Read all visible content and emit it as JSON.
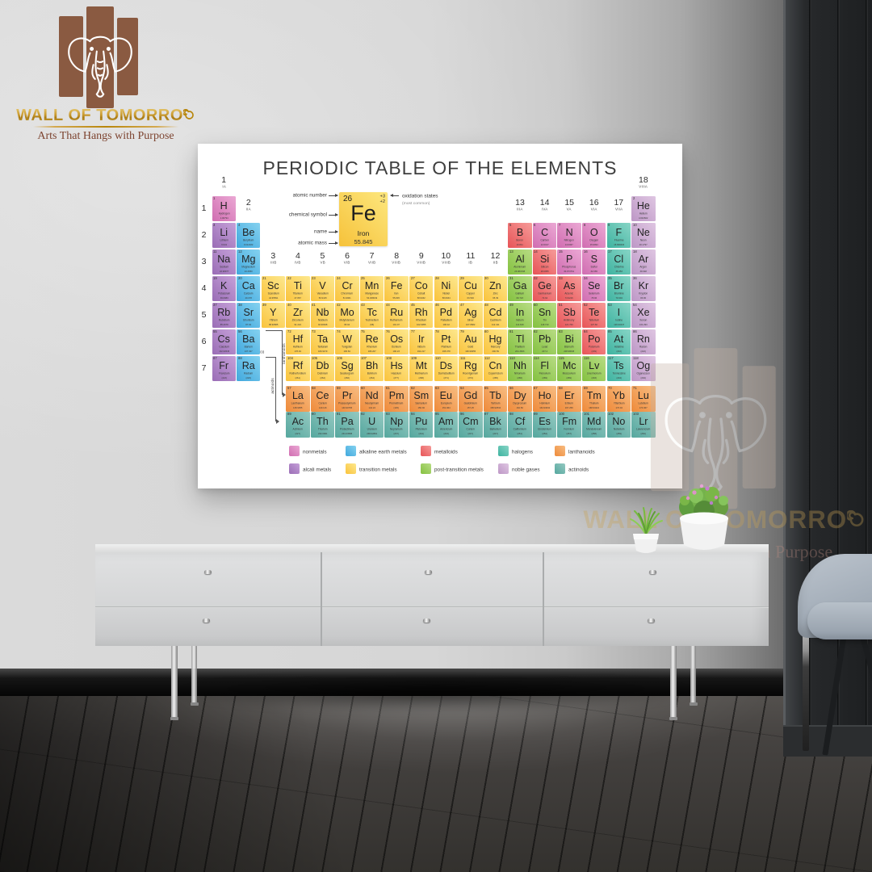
{
  "brand": {
    "name": "WALL OF TOMORRO",
    "tagline": "Arts That Hangs with Purpose",
    "mark_icon": "spiral-swirl-icon",
    "logo_icon": "elephant-icon",
    "gold": "#c9992e",
    "brown": "#8a5a41"
  },
  "poster": {
    "title": "PERIODIC TABLE OF THE ELEMENTS",
    "key": {
      "atomic_number": "26",
      "symbol": "Fe",
      "name": "Iron",
      "mass": "55.845",
      "oxidation_states": [
        "+3",
        "+2"
      ],
      "labels": {
        "atomic_number": "atomic number",
        "symbol": "chemical symbol",
        "name": "name",
        "mass": "atomic mass",
        "oxidation": "oxidation states",
        "oxidation_note": "(most common)"
      }
    },
    "periods": [
      "1",
      "2",
      "3",
      "4",
      "5",
      "6",
      "7"
    ],
    "groups": [
      {
        "num": "1",
        "roman": "IA",
        "col": 1,
        "level": 0
      },
      {
        "num": "2",
        "roman": "IIA",
        "col": 2,
        "level": 1
      },
      {
        "num": "3",
        "roman": "IIIB",
        "col": 3,
        "level": 3
      },
      {
        "num": "4",
        "roman": "IVB",
        "col": 4,
        "level": 3
      },
      {
        "num": "5",
        "roman": "VB",
        "col": 5,
        "level": 3
      },
      {
        "num": "6",
        "roman": "VIB",
        "col": 6,
        "level": 3
      },
      {
        "num": "7",
        "roman": "VIIB",
        "col": 7,
        "level": 3
      },
      {
        "num": "8",
        "roman": "VIIIB",
        "col": 8,
        "level": 3
      },
      {
        "num": "9",
        "roman": "VIIIB",
        "col": 9,
        "level": 3
      },
      {
        "num": "10",
        "roman": "VIIIB",
        "col": 10,
        "level": 3
      },
      {
        "num": "11",
        "roman": "IB",
        "col": 11,
        "level": 3
      },
      {
        "num": "12",
        "roman": "IIB",
        "col": 12,
        "level": 3
      },
      {
        "num": "13",
        "roman": "IIIA",
        "col": 13,
        "level": 1
      },
      {
        "num": "14",
        "roman": "IVA",
        "col": 14,
        "level": 1
      },
      {
        "num": "15",
        "roman": "VA",
        "col": 15,
        "level": 1
      },
      {
        "num": "16",
        "roman": "VIA",
        "col": 16,
        "level": 1
      },
      {
        "num": "17",
        "roman": "VIIA",
        "col": 17,
        "level": 1
      },
      {
        "num": "18",
        "roman": "VIIIA",
        "col": 18,
        "level": 0
      }
    ],
    "series_links": [
      {
        "range": "57 - 71",
        "label": "lanthanoids"
      },
      {
        "range": "89 - 103",
        "label": "actinoids"
      }
    ],
    "categories": {
      "nm": {
        "label": "nonmetals",
        "color": "#d06db1",
        "color_light": "#eba8d4"
      },
      "am": {
        "label": "alcali metals",
        "color": "#9a6db6",
        "color_light": "#c5a0d8"
      },
      "ae": {
        "label": "alkaline earth metals",
        "color": "#41a8dd",
        "color_light": "#85d2f0"
      },
      "tm": {
        "label": "transition metals",
        "color": "#fac33c",
        "color_light": "#fde88e"
      },
      "pt": {
        "label": "post-transition metals",
        "color": "#84c140",
        "color_light": "#b8dc84"
      },
      "md": {
        "label": "metalloids",
        "color": "#e75457",
        "color_light": "#f69b99"
      },
      "hl": {
        "label": "halogens",
        "color": "#3eb3a0",
        "color_light": "#88d5c6"
      },
      "ng": {
        "label": "noble gases",
        "color": "#bd97c6",
        "color_light": "#dfc6e2"
      },
      "la": {
        "label": "lanthanoids",
        "color": "#ee8a3a",
        "color_light": "#f8bd82"
      },
      "ac": {
        "label": "actinoids",
        "color": "#55a79e",
        "color_light": "#94c9c1"
      }
    },
    "legend_rows": [
      [
        "nm",
        "ae",
        "md",
        "hl",
        "la"
      ],
      [
        "am",
        "tm",
        "pt",
        "ng",
        "ac"
      ]
    ],
    "elements": [
      [
        1,
        "H",
        "Hydrogen",
        "1.00794",
        "nm",
        1,
        1
      ],
      [
        2,
        "He",
        "Helium",
        "4.002602",
        "ng",
        1,
        18
      ],
      [
        3,
        "Li",
        "Lithium",
        "6.941",
        "am",
        2,
        1
      ],
      [
        4,
        "Be",
        "Beryllium",
        "9.012182",
        "ae",
        2,
        2
      ],
      [
        5,
        "B",
        "Boron",
        "10.811",
        "md",
        2,
        13
      ],
      [
        6,
        "C",
        "Carbon",
        "12.0107",
        "nm",
        2,
        14
      ],
      [
        7,
        "N",
        "Nitrogen",
        "14.0067",
        "nm",
        2,
        15
      ],
      [
        8,
        "O",
        "Oxygen",
        "15.9994",
        "nm",
        2,
        16
      ],
      [
        9,
        "F",
        "Fluorine",
        "18.998403",
        "hl",
        2,
        17
      ],
      [
        10,
        "Ne",
        "Neon",
        "20.1797",
        "ng",
        2,
        18
      ],
      [
        11,
        "Na",
        "Sodium",
        "22.98977",
        "am",
        3,
        1
      ],
      [
        12,
        "Mg",
        "Magnesium",
        "24.3050",
        "ae",
        3,
        2
      ],
      [
        13,
        "Al",
        "Aluminium",
        "26.981538",
        "pt",
        3,
        13
      ],
      [
        14,
        "Si",
        "Silicon",
        "28.0855",
        "md",
        3,
        14
      ],
      [
        15,
        "P",
        "Phosphorus",
        "30.973761",
        "nm",
        3,
        15
      ],
      [
        16,
        "S",
        "Sulfur",
        "32.065",
        "nm",
        3,
        16
      ],
      [
        17,
        "Cl",
        "Chlorine",
        "35.453",
        "hl",
        3,
        17
      ],
      [
        18,
        "Ar",
        "Argon",
        "39.948",
        "ng",
        3,
        18
      ],
      [
        19,
        "K",
        "Potassium",
        "39.0983",
        "am",
        4,
        1
      ],
      [
        20,
        "Ca",
        "Calcium",
        "40.078",
        "ae",
        4,
        2
      ],
      [
        21,
        "Sc",
        "Scandium",
        "44.95591",
        "tm",
        4,
        3
      ],
      [
        22,
        "Ti",
        "Titanium",
        "47.867",
        "tm",
        4,
        4
      ],
      [
        23,
        "V",
        "Vanadium",
        "50.9415",
        "tm",
        4,
        5
      ],
      [
        24,
        "Cr",
        "Chromium",
        "51.9961",
        "tm",
        4,
        6
      ],
      [
        25,
        "Mn",
        "Manganese",
        "54.938049",
        "tm",
        4,
        7
      ],
      [
        26,
        "Fe",
        "Iron",
        "55.845",
        "tm",
        4,
        8
      ],
      [
        27,
        "Co",
        "Cobalt",
        "58.9332",
        "tm",
        4,
        9
      ],
      [
        28,
        "Ni",
        "Nickel",
        "58.6934",
        "tm",
        4,
        10
      ],
      [
        29,
        "Cu",
        "Copper",
        "63.546",
        "tm",
        4,
        11
      ],
      [
        30,
        "Zn",
        "Zinc",
        "65.39",
        "tm",
        4,
        12
      ],
      [
        31,
        "Ga",
        "Gallium",
        "69.723",
        "pt",
        4,
        13
      ],
      [
        32,
        "Ge",
        "Germanium",
        "72.64",
        "md",
        4,
        14
      ],
      [
        33,
        "As",
        "Arsenic",
        "74.9216",
        "md",
        4,
        15
      ],
      [
        34,
        "Se",
        "Selenium",
        "78.96",
        "nm",
        4,
        16
      ],
      [
        35,
        "Br",
        "Bromine",
        "79.904",
        "hl",
        4,
        17
      ],
      [
        36,
        "Kr",
        "Krypton",
        "83.80",
        "ng",
        4,
        18
      ],
      [
        37,
        "Rb",
        "Rubidium",
        "85.4678",
        "am",
        5,
        1
      ],
      [
        38,
        "Sr",
        "Strontium",
        "87.62",
        "ae",
        5,
        2
      ],
      [
        39,
        "Y",
        "Yttrium",
        "88.90585",
        "tm",
        5,
        3
      ],
      [
        40,
        "Zr",
        "Zirconium",
        "91.224",
        "tm",
        5,
        4
      ],
      [
        41,
        "Nb",
        "Niobium",
        "92.90638",
        "tm",
        5,
        5
      ],
      [
        42,
        "Mo",
        "Molybdenum",
        "95.94",
        "tm",
        5,
        6
      ],
      [
        43,
        "Tc",
        "Technetium",
        "(98)",
        "tm",
        5,
        7
      ],
      [
        44,
        "Ru",
        "Ruthenium",
        "101.07",
        "tm",
        5,
        8
      ],
      [
        45,
        "Rh",
        "Rhodium",
        "102.9055",
        "tm",
        5,
        9
      ],
      [
        46,
        "Pd",
        "Palladium",
        "106.42",
        "tm",
        5,
        10
      ],
      [
        47,
        "Ag",
        "Silver",
        "107.8682",
        "tm",
        5,
        11
      ],
      [
        48,
        "Cd",
        "Cadmium",
        "112.411",
        "tm",
        5,
        12
      ],
      [
        49,
        "In",
        "Indium",
        "114.818",
        "pt",
        5,
        13
      ],
      [
        50,
        "Sn",
        "Tin",
        "118.710",
        "pt",
        5,
        14
      ],
      [
        51,
        "Sb",
        "Antimony",
        "121.760",
        "md",
        5,
        15
      ],
      [
        52,
        "Te",
        "Tellurium",
        "127.60",
        "md",
        5,
        16
      ],
      [
        53,
        "I",
        "Iodine",
        "126.90447",
        "hl",
        5,
        17
      ],
      [
        54,
        "Xe",
        "Xenon",
        "131.293",
        "ng",
        5,
        18
      ],
      [
        55,
        "Cs",
        "Caesium",
        "132.90545",
        "am",
        6,
        1
      ],
      [
        56,
        "Ba",
        "Barium",
        "137.327",
        "ae",
        6,
        2
      ],
      [
        72,
        "Hf",
        "Hafnium",
        "178.49",
        "tm",
        6,
        4
      ],
      [
        73,
        "Ta",
        "Tantalum",
        "180.9479",
        "tm",
        6,
        5
      ],
      [
        74,
        "W",
        "Tungsten",
        "183.84",
        "tm",
        6,
        6
      ],
      [
        75,
        "Re",
        "Rhenium",
        "186.207",
        "tm",
        6,
        7
      ],
      [
        76,
        "Os",
        "Osmium",
        "190.23",
        "tm",
        6,
        8
      ],
      [
        77,
        "Ir",
        "Iridium",
        "192.217",
        "tm",
        6,
        9
      ],
      [
        78,
        "Pt",
        "Platinum",
        "195.078",
        "tm",
        6,
        10
      ],
      [
        79,
        "Au",
        "Gold",
        "196.96655",
        "tm",
        6,
        11
      ],
      [
        80,
        "Hg",
        "Mercury",
        "200.59",
        "tm",
        6,
        12
      ],
      [
        81,
        "Tl",
        "Thallium",
        "204.3833",
        "pt",
        6,
        13
      ],
      [
        82,
        "Pb",
        "Lead",
        "207.2",
        "pt",
        6,
        14
      ],
      [
        83,
        "Bi",
        "Bismuth",
        "208.98038",
        "pt",
        6,
        15
      ],
      [
        84,
        "Po",
        "Polonium",
        "(209)",
        "md",
        6,
        16
      ],
      [
        85,
        "At",
        "Astatine",
        "(210)",
        "hl",
        6,
        17
      ],
      [
        86,
        "Rn",
        "Radon",
        "(222)",
        "ng",
        6,
        18
      ],
      [
        87,
        "Fr",
        "Francium",
        "(223)",
        "am",
        7,
        1
      ],
      [
        88,
        "Ra",
        "Radium",
        "(226)",
        "ae",
        7,
        2
      ],
      [
        104,
        "Rf",
        "Rutherfordium",
        "(261)",
        "tm",
        7,
        4
      ],
      [
        105,
        "Db",
        "Dubnium",
        "(262)",
        "tm",
        7,
        5
      ],
      [
        106,
        "Sg",
        "Seaborgium",
        "(266)",
        "tm",
        7,
        6
      ],
      [
        107,
        "Bh",
        "Bohrium",
        "(264)",
        "tm",
        7,
        7
      ],
      [
        108,
        "Hs",
        "Hassium",
        "(277)",
        "tm",
        7,
        8
      ],
      [
        109,
        "Mt",
        "Meitnerium",
        "(268)",
        "tm",
        7,
        9
      ],
      [
        110,
        "Ds",
        "Darmstadtium",
        "(271)",
        "tm",
        7,
        10
      ],
      [
        111,
        "Rg",
        "Roentgenium",
        "(272)",
        "tm",
        7,
        11
      ],
      [
        112,
        "Cn",
        "Copernicium",
        "(285)",
        "tm",
        7,
        12
      ],
      [
        113,
        "Nh",
        "Nihonium",
        "(286)",
        "pt",
        7,
        13
      ],
      [
        114,
        "Fl",
        "Flerovium",
        "(289)",
        "pt",
        7,
        14
      ],
      [
        115,
        "Mc",
        "Moscovium",
        "(289)",
        "pt",
        7,
        15
      ],
      [
        116,
        "Lv",
        "Livermorium",
        "(293)",
        "pt",
        7,
        16
      ],
      [
        117,
        "Ts",
        "Tennessine",
        "(294)",
        "hl",
        7,
        17
      ],
      [
        118,
        "Og",
        "Oganesson",
        "(294)",
        "ng",
        7,
        18
      ],
      [
        57,
        "La",
        "Lanthanum",
        "138.9055",
        "la",
        8,
        4
      ],
      [
        58,
        "Ce",
        "Cerium",
        "140.116",
        "la",
        8,
        5
      ],
      [
        59,
        "Pr",
        "Praseodymium",
        "140.90765",
        "la",
        8,
        6
      ],
      [
        60,
        "Nd",
        "Neodymium",
        "144.24",
        "la",
        8,
        7
      ],
      [
        61,
        "Pm",
        "Promethium",
        "(145)",
        "la",
        8,
        8
      ],
      [
        62,
        "Sm",
        "Samarium",
        "150.36",
        "la",
        8,
        9
      ],
      [
        63,
        "Eu",
        "Europium",
        "151.964",
        "la",
        8,
        10
      ],
      [
        64,
        "Gd",
        "Gadolinium",
        "157.25",
        "la",
        8,
        11
      ],
      [
        65,
        "Tb",
        "Terbium",
        "158.92534",
        "la",
        8,
        12
      ],
      [
        66,
        "Dy",
        "Dysprosium",
        "162.50",
        "la",
        8,
        13
      ],
      [
        67,
        "Ho",
        "Holmium",
        "164.93032",
        "la",
        8,
        14
      ],
      [
        68,
        "Er",
        "Erbium",
        "167.259",
        "la",
        8,
        15
      ],
      [
        69,
        "Tm",
        "Thulium",
        "168.93421",
        "la",
        8,
        16
      ],
      [
        70,
        "Yb",
        "Ytterbium",
        "173.04",
        "la",
        8,
        17
      ],
      [
        71,
        "Lu",
        "Lutetium",
        "174.967",
        "la",
        8,
        18
      ],
      [
        89,
        "Ac",
        "Actinium",
        "(227)",
        "ac",
        9,
        4
      ],
      [
        90,
        "Th",
        "Thorium",
        "232.0381",
        "ac",
        9,
        5
      ],
      [
        91,
        "Pa",
        "Protactinium",
        "231.03588",
        "ac",
        9,
        6
      ],
      [
        92,
        "U",
        "Uranium",
        "238.02891",
        "ac",
        9,
        7
      ],
      [
        93,
        "Np",
        "Neptunium",
        "(237)",
        "ac",
        9,
        8
      ],
      [
        94,
        "Pu",
        "Plutonium",
        "(244)",
        "ac",
        9,
        9
      ],
      [
        95,
        "Am",
        "Americium",
        "(243)",
        "ac",
        9,
        10
      ],
      [
        96,
        "Cm",
        "Curium",
        "(247)",
        "ac",
        9,
        11
      ],
      [
        97,
        "Bk",
        "Berkelium",
        "(247)",
        "ac",
        9,
        12
      ],
      [
        98,
        "Cf",
        "Californium",
        "(251)",
        "ac",
        9,
        13
      ],
      [
        99,
        "Es",
        "Einsteinium",
        "(252)",
        "ac",
        9,
        14
      ],
      [
        100,
        "Fm",
        "Fermium",
        "(257)",
        "ac",
        9,
        15
      ],
      [
        101,
        "Md",
        "Mendelevium",
        "(258)",
        "ac",
        9,
        16
      ],
      [
        102,
        "No",
        "Nobelium",
        "(259)",
        "ac",
        9,
        17
      ],
      [
        103,
        "Lr",
        "Lawrencium",
        "(262)",
        "ac",
        9,
        18
      ]
    ]
  }
}
